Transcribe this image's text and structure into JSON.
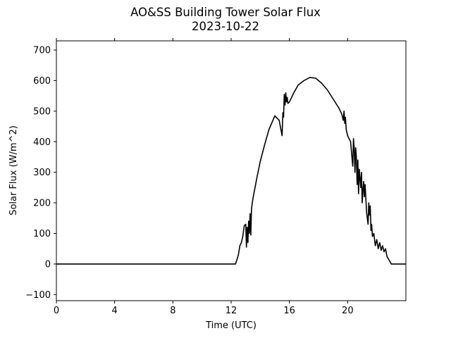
{
  "chart_data": {
    "type": "line",
    "title": "AO&SS Building Tower Solar Flux",
    "subtitle": "2023-10-22",
    "xlabel": "Time (UTC)",
    "ylabel": "Solar Flux (W/m^2)",
    "xlim": [
      0,
      24
    ],
    "ylim": [
      -120,
      730
    ],
    "x_ticks": [
      0,
      4,
      8,
      12,
      16,
      20
    ],
    "x_tick_labels": [
      "0",
      "4",
      "8",
      "12",
      "16",
      "20"
    ],
    "y_ticks": [
      -100,
      0,
      100,
      200,
      300,
      400,
      500,
      600,
      700
    ],
    "y_tick_labels": [
      "−100",
      "0",
      "100",
      "200",
      "300",
      "400",
      "500",
      "600",
      "700"
    ],
    "grid": false,
    "line_color": "#000000",
    "series": [
      {
        "x": [
          0,
          12.3,
          12.4,
          12.5,
          12.6,
          12.7,
          12.8,
          12.9,
          13.0,
          13.05,
          13.1,
          13.15,
          13.2,
          13.25,
          13.3,
          13.35,
          13.4,
          13.45,
          13.5,
          13.6,
          13.8,
          14.0,
          14.3,
          14.6,
          15.0,
          15.3,
          15.5,
          15.55,
          15.6,
          15.65,
          15.7,
          15.75,
          15.8,
          15.85,
          15.9,
          16.0,
          16.3,
          16.6,
          17.0,
          17.4,
          17.8,
          18.2,
          18.6,
          19.0,
          19.4,
          19.6,
          19.7,
          19.75,
          19.8,
          19.85,
          19.9,
          20.0,
          20.2,
          20.35,
          20.4,
          20.45,
          20.5,
          20.55,
          20.6,
          20.65,
          20.7,
          20.75,
          20.8,
          20.85,
          20.9,
          20.95,
          21.0,
          21.05,
          21.1,
          21.15,
          21.2,
          21.3,
          21.4,
          21.45,
          21.5,
          21.55,
          21.6,
          21.65,
          21.7,
          21.8,
          21.9,
          22.0,
          22.1,
          22.2,
          22.3,
          22.4,
          22.5,
          22.6,
          22.7,
          23.0,
          24.0
        ],
        "y": [
          0,
          0,
          15,
          30,
          60,
          70,
          90,
          125,
          130,
          55,
          120,
          70,
          140,
          100,
          165,
          95,
          180,
          200,
          215,
          240,
          290,
          335,
          390,
          440,
          485,
          470,
          420,
          495,
          480,
          555,
          520,
          560,
          530,
          545,
          525,
          530,
          560,
          585,
          600,
          610,
          608,
          592,
          570,
          540,
          510,
          490,
          470,
          500,
          460,
          480,
          440,
          420,
          400,
          320,
          410,
          380,
          300,
          380,
          350,
          260,
          340,
          230,
          310,
          280,
          250,
          300,
          200,
          240,
          270,
          220,
          260,
          170,
          130,
          200,
          160,
          190,
          110,
          130,
          90,
          100,
          60,
          80,
          50,
          70,
          45,
          60,
          40,
          50,
          25,
          0,
          0
        ]
      }
    ]
  }
}
